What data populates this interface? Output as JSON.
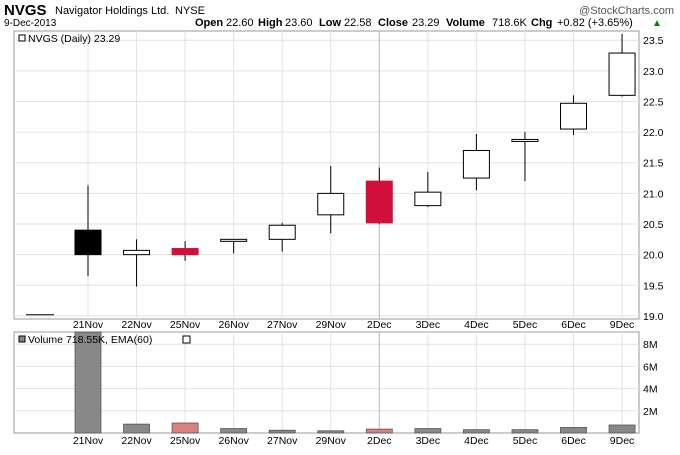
{
  "header": {
    "ticker": "NVGS",
    "company": "Navigator Holdings Ltd.",
    "exchange": "NYSE",
    "date": "9-Dec-2013",
    "watermark": "@StockCharts.com",
    "open_label": "Open",
    "open_value": "22.60",
    "high_label": "High",
    "high_value": "23.60",
    "low_label": "Low",
    "low_value": "22.58",
    "close_label": "Close",
    "close_value": "23.29",
    "volume_label": "Volume",
    "volume_value": "718.6K",
    "chg_label": "Chg",
    "chg_value": "+0.82 (+3.65%)",
    "chg_arrow": "▲"
  },
  "price_panel": {
    "legend": "NVGS (Daily) 23.29"
  },
  "volume_panel": {
    "legend": "Volume 718.55K, EMA(60)"
  },
  "colors": {
    "up_body": "#ffffff",
    "down_body": "#000000",
    "red_body": "#d0103a",
    "wick": "#000000",
    "vol_gray": "#888888",
    "vol_red": "#d98080",
    "chg_green": "#008000",
    "grid": "#e2e2e2"
  },
  "chart_data": [
    {
      "type": "candlestick",
      "ylim": [
        18.95,
        23.65
      ],
      "yticks": [
        19.0,
        19.5,
        20.0,
        20.5,
        21.0,
        21.5,
        22.0,
        22.5,
        23.0,
        23.5
      ],
      "x_labels": [
        "21Nov",
        "22Nov",
        "25Nov",
        "26Nov",
        "27Nov",
        "29Nov",
        "2Dec",
        "3Dec",
        "4Dec",
        "5Dec",
        "6Dec",
        "9Dec"
      ],
      "pre_line": {
        "value": 19.02
      },
      "candles": [
        {
          "date": "21Nov",
          "open": 20.0,
          "high": 21.13,
          "low": 19.65,
          "close": 20.4,
          "color": "black"
        },
        {
          "date": "22Nov",
          "open": 20.0,
          "high": 20.25,
          "low": 19.48,
          "close": 20.07,
          "color": "white"
        },
        {
          "date": "25Nov",
          "open": 20.1,
          "high": 20.22,
          "low": 19.9,
          "close": 20.0,
          "color": "red"
        },
        {
          "date": "26Nov",
          "open": 20.22,
          "high": 20.25,
          "low": 20.02,
          "close": 20.25,
          "color": "white"
        },
        {
          "date": "27Nov",
          "open": 20.25,
          "high": 20.52,
          "low": 20.05,
          "close": 20.48,
          "color": "white"
        },
        {
          "date": "29Nov",
          "open": 20.65,
          "high": 21.45,
          "low": 20.35,
          "close": 21.0,
          "color": "white"
        },
        {
          "date": "2Dec",
          "open": 21.2,
          "high": 21.42,
          "low": 20.5,
          "close": 20.52,
          "color": "red"
        },
        {
          "date": "3Dec",
          "open": 20.8,
          "high": 21.35,
          "low": 20.78,
          "close": 21.02,
          "color": "white"
        },
        {
          "date": "4Dec",
          "open": 21.25,
          "high": 21.97,
          "low": 21.05,
          "close": 21.7,
          "color": "white"
        },
        {
          "date": "5Dec",
          "open": 21.85,
          "high": 22.0,
          "low": 21.2,
          "close": 21.88,
          "color": "white"
        },
        {
          "date": "6Dec",
          "open": 22.05,
          "high": 22.6,
          "low": 21.95,
          "close": 22.47,
          "color": "white"
        },
        {
          "date": "9Dec",
          "open": 22.6,
          "high": 23.6,
          "low": 22.58,
          "close": 23.29,
          "color": "white"
        }
      ]
    },
    {
      "type": "bar",
      "ylim": [
        0,
        9.1
      ],
      "yticks": [
        2,
        4,
        6,
        8
      ],
      "ytick_labels": [
        "2M",
        "4M",
        "6M",
        "8M"
      ],
      "unit": "M",
      "categories": [
        "21Nov",
        "22Nov",
        "25Nov",
        "26Nov",
        "27Nov",
        "29Nov",
        "2Dec",
        "3Dec",
        "4Dec",
        "5Dec",
        "6Dec",
        "9Dec"
      ],
      "values": [
        9.1,
        0.8,
        0.9,
        0.4,
        0.25,
        0.2,
        0.35,
        0.4,
        0.3,
        0.3,
        0.5,
        0.72
      ],
      "colors": [
        "gray",
        "gray",
        "red",
        "gray",
        "gray",
        "gray",
        "red",
        "gray",
        "gray",
        "gray",
        "gray",
        "gray"
      ]
    }
  ]
}
